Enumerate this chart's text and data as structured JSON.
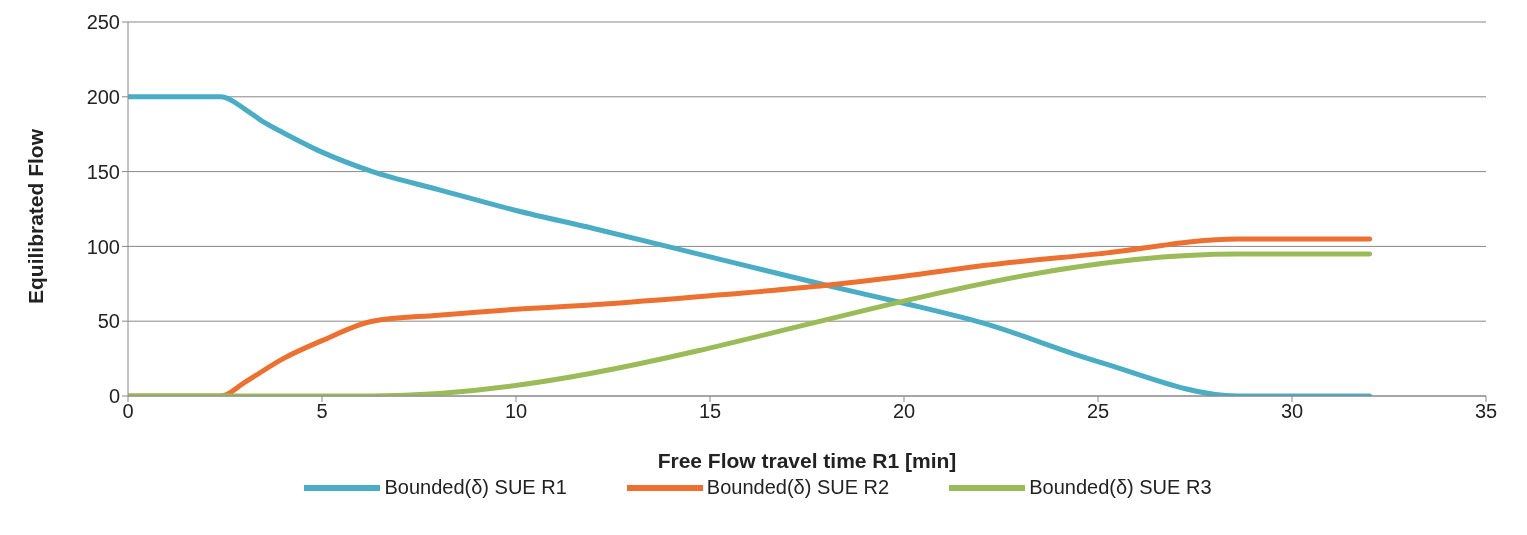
{
  "chart_data": {
    "type": "line",
    "xlabel": "Free Flow travel time R1 [min]",
    "ylabel": "Equilibrated Flow",
    "xlim": [
      0,
      35
    ],
    "xticks": [
      0,
      5,
      10,
      15,
      20,
      25,
      30,
      35
    ],
    "ylim": [
      0,
      250
    ],
    "yticks": [
      0,
      50,
      100,
      150,
      200,
      250
    ],
    "grid": "y",
    "legend": "bottom",
    "marker": "none",
    "line_style": "solid",
    "series": [
      {
        "name": "Bounded(δ) SUE R1",
        "color": "#4aacc5",
        "x": [
          0,
          2.4,
          3,
          3.5,
          4,
          5,
          6.3,
          8,
          10,
          12,
          15,
          18,
          20,
          22,
          25,
          28.6,
          32
        ],
        "values": [
          200,
          200,
          192,
          183,
          176,
          163,
          150,
          138,
          124,
          112,
          93,
          74,
          62,
          49,
          23,
          0,
          0
        ]
      },
      {
        "name": "Bounded(δ) SUE R2",
        "color": "#ec7030",
        "x": [
          0,
          2.4,
          3,
          4,
          5,
          6.3,
          8,
          10,
          12,
          15,
          18,
          20,
          22,
          25,
          28.6,
          32
        ],
        "values": [
          0,
          0,
          9,
          25,
          37,
          50,
          54,
          58,
          61,
          67,
          74,
          80,
          87,
          95,
          105,
          105
        ]
      },
      {
        "name": "Bounded(δ) SUE R3",
        "color": "#9bbb59",
        "x": [
          0,
          6.3,
          28.6,
          32
        ],
        "values": [
          0,
          0,
          95,
          95
        ]
      }
    ]
  }
}
